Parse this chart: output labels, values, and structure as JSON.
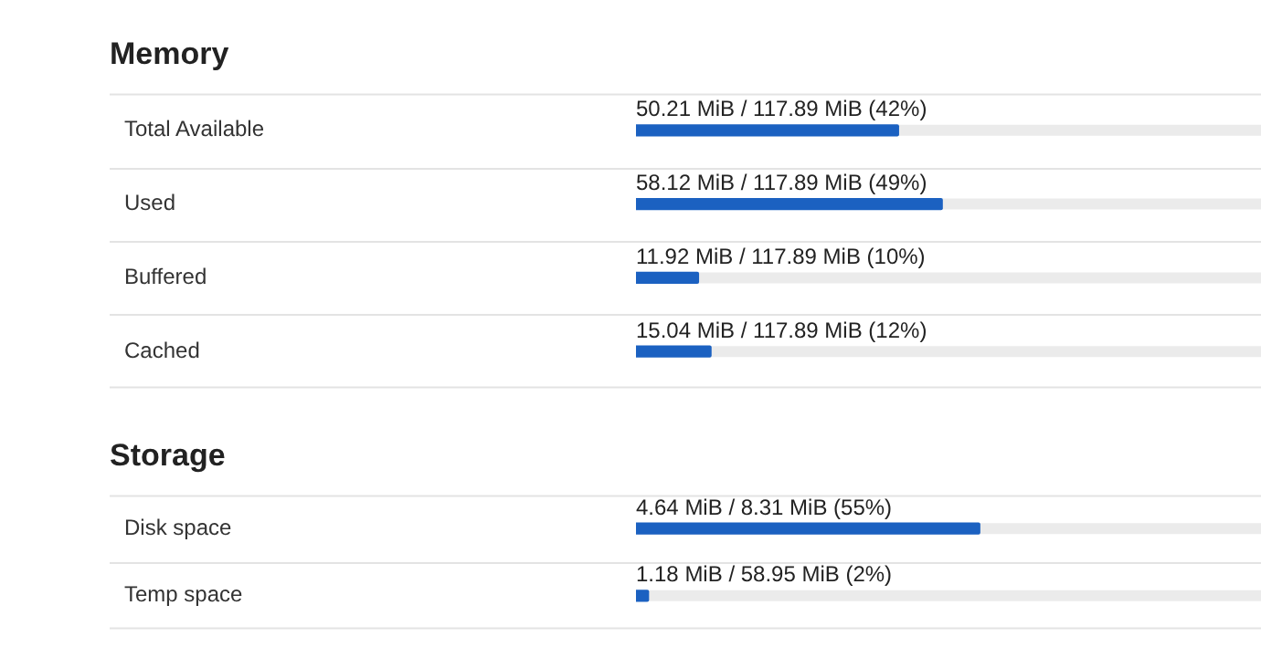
{
  "chart_data": [
    {
      "type": "bar",
      "title": "Memory",
      "orientation": "horizontal",
      "categories": [
        "Total Available",
        "Used",
        "Buffered",
        "Cached"
      ],
      "values": [
        42,
        49,
        10,
        12
      ],
      "value_labels": [
        "50.21 MiB / 117.89 MiB (42%)",
        "58.12 MiB / 117.89 MiB (49%)",
        "11.92 MiB / 117.89 MiB (10%)",
        "15.04 MiB / 117.89 MiB (12%)"
      ],
      "color": "#1b61c1",
      "xlim": [
        0,
        100
      ],
      "tick_labels": "y",
      "grid": "y",
      "legend": false
    },
    {
      "type": "bar",
      "title": "Storage",
      "orientation": "horizontal",
      "categories": [
        "Disk space",
        "Temp space"
      ],
      "values": [
        55,
        2
      ],
      "value_labels": [
        "4.64 MiB / 8.31 MiB (55%)",
        "1.18 MiB / 58.95 MiB (2%)"
      ],
      "color": "#1b61c1",
      "xlim": [
        0,
        100
      ],
      "tick_labels": "y",
      "grid": "y",
      "legend": false
    }
  ]
}
